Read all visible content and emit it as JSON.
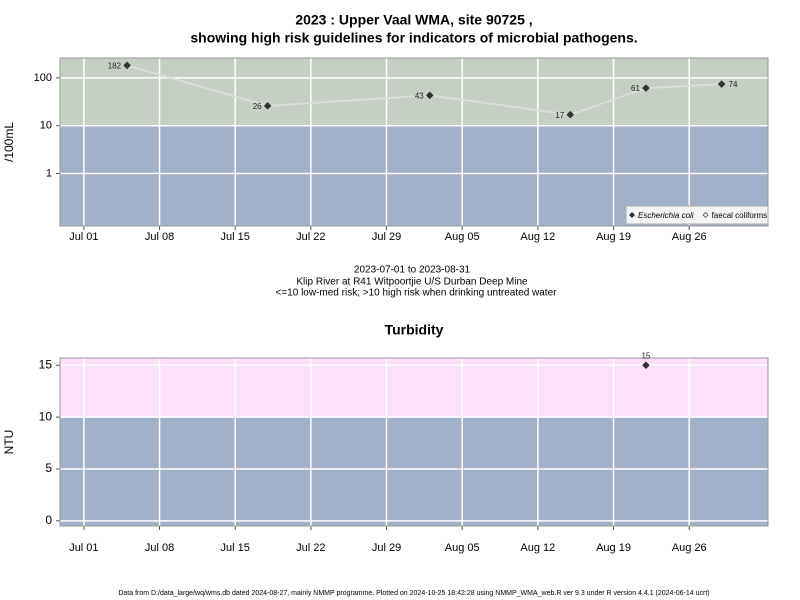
{
  "chart_data": [
    {
      "type": "line",
      "title": [
        "2023 : Upper Vaal WMA, site 90725 ,",
        "showing high risk guidelines for indicators of microbial pathogens."
      ],
      "subtitle": [
        "2023-07-01 to 2023-08-31",
        "Klip River at R41 Witpoortjie U/S Durban Deep Mine",
        "<=10 low-med risk; >10 high risk when drinking untreated water"
      ],
      "ylabel": "/100mL",
      "ylog": true,
      "ylim": [
        0.08,
        260
      ],
      "yticks": [
        1,
        10,
        100
      ],
      "xlim": [
        "2023-06-28T19:00",
        "2023-09-02T07:00"
      ],
      "xticks": [
        {
          "value": "2023-07-01",
          "label": "Jul 01"
        },
        {
          "value": "2023-07-08",
          "label": "Jul 08"
        },
        {
          "value": "2023-07-15",
          "label": "Jul 15"
        },
        {
          "value": "2023-07-22",
          "label": "Jul 22"
        },
        {
          "value": "2023-07-29",
          "label": "Jul 29"
        },
        {
          "value": "2023-08-05",
          "label": "Aug 05"
        },
        {
          "value": "2023-08-12",
          "label": "Aug 12"
        },
        {
          "value": "2023-08-19",
          "label": "Aug 19"
        },
        {
          "value": "2023-08-26",
          "label": "Aug 26"
        }
      ],
      "threshold": 10,
      "band_colors": [
        "#a1b1c9",
        "#c5cfc3"
      ],
      "grid": true,
      "legend": "bottom-right",
      "x": [
        "2023-07-05",
        "2023-07-18",
        "2023-08-02",
        "2023-08-15",
        "2023-08-22",
        "2023-08-29"
      ],
      "series": [
        {
          "name": "Escherichia coli",
          "color": "#333333",
          "line_color": "#dddddd",
          "values": [
            182,
            26,
            43,
            17,
            61,
            74
          ]
        },
        {
          "name": "faecal coliforms",
          "color": "#ffffff",
          "line_color": "#dddddd",
          "values": [
            null,
            null,
            null,
            null,
            null,
            null
          ]
        }
      ]
    },
    {
      "type": "scatter",
      "title": "Turbidity",
      "ylabel": "NTU",
      "ylog": false,
      "ylim": [
        -0.5,
        15.7
      ],
      "yticks": [
        0,
        5,
        10,
        15
      ],
      "xlim": [
        "2023-06-28T19:00",
        "2023-09-02T07:00"
      ],
      "xticks": [
        {
          "value": "2023-07-01",
          "label": "Jul 01"
        },
        {
          "value": "2023-07-08",
          "label": "Jul 08"
        },
        {
          "value": "2023-07-15",
          "label": "Jul 15"
        },
        {
          "value": "2023-07-22",
          "label": "Jul 22"
        },
        {
          "value": "2023-07-29",
          "label": "Jul 29"
        },
        {
          "value": "2023-08-05",
          "label": "Aug 05"
        },
        {
          "value": "2023-08-12",
          "label": "Aug 12"
        },
        {
          "value": "2023-08-19",
          "label": "Aug 19"
        },
        {
          "value": "2023-08-26",
          "label": "Aug 26"
        }
      ],
      "threshold": 10,
      "band_colors": [
        "#a1b1c9",
        "#fce0fc"
      ],
      "grid": true,
      "x": [
        "2023-08-22"
      ],
      "values": [
        15
      ],
      "color": "#333333"
    }
  ],
  "footer": "Data from D:/data_large/wq/wms.db dated 2024-08-27, mainly NMMP programme. Plotted on 2024-10-25 18:42:28 using NMMP_WMA_web.R ver 9.3 under R version 4.4.1 (2024-06-14 ucrt)"
}
